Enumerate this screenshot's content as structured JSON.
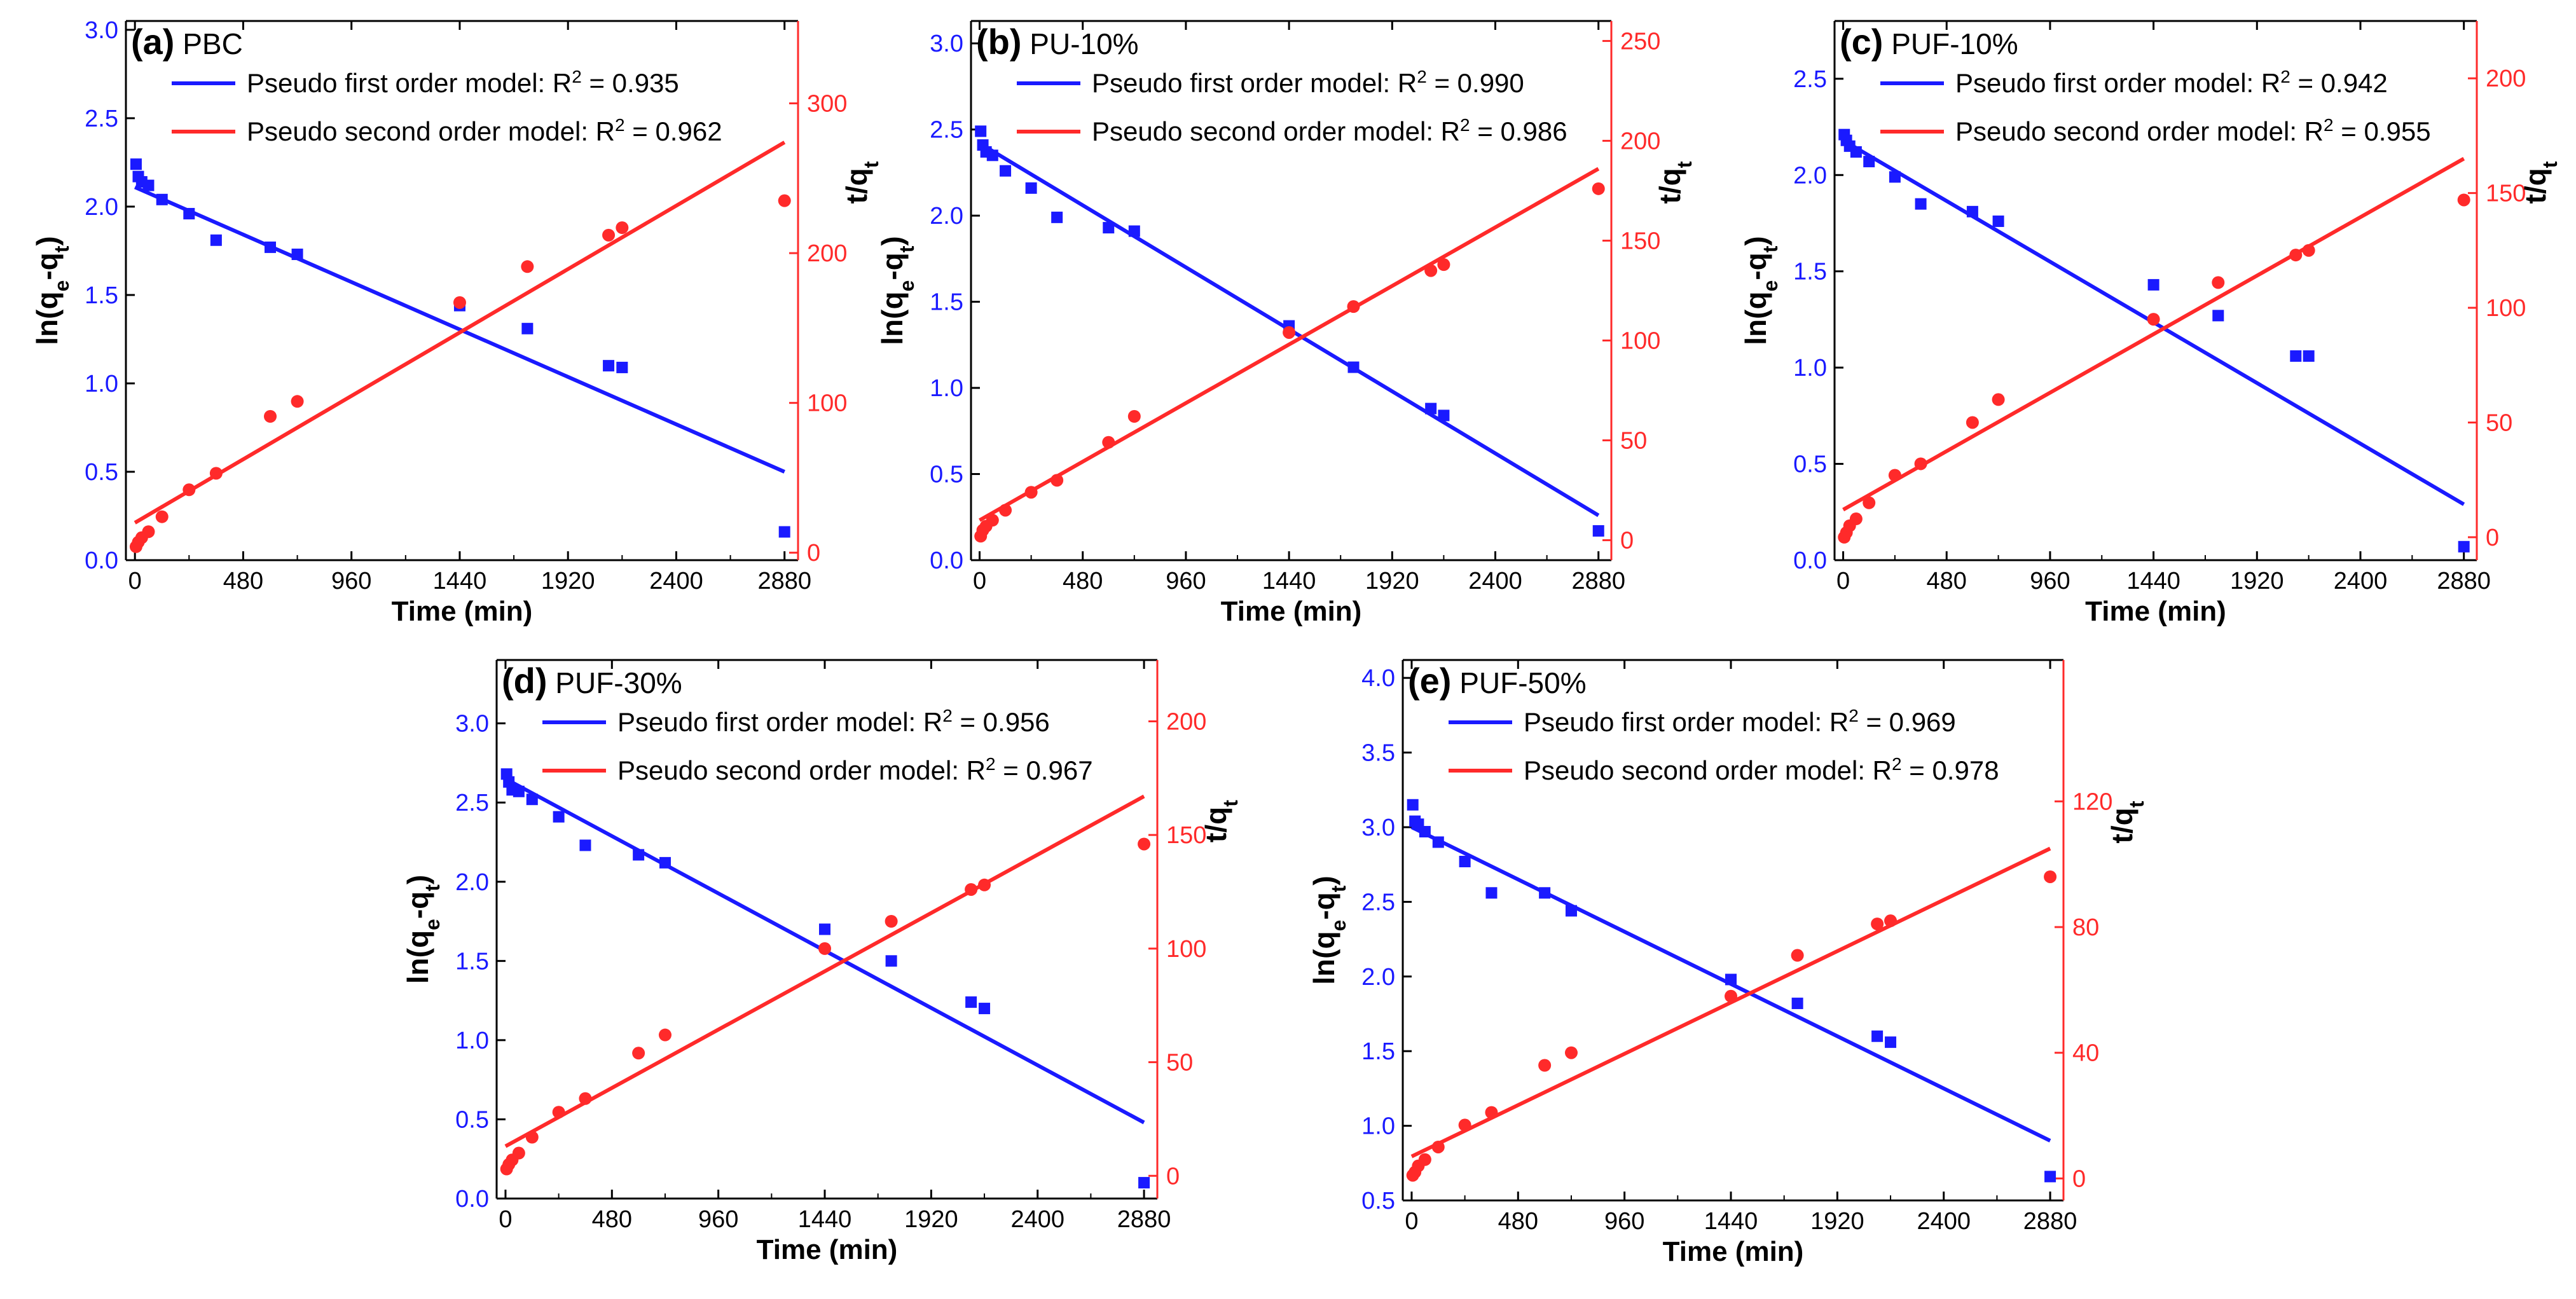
{
  "figure": {
    "colors": {
      "blue": "#1a1aff",
      "red": "#ff2a2a",
      "axis": "#000000"
    }
  },
  "chart_data": [
    {
      "type": "scatter",
      "panel_label": "(a)",
      "sample": "PBC",
      "xlabel": "Time (min)",
      "ylabel_left": [
        "ln(q",
        "e",
        "-q",
        "t",
        ")"
      ],
      "ylabel_right": [
        "t/q",
        "t"
      ],
      "xlim": [
        -40,
        2940
      ],
      "x_ticks": [
        0,
        480,
        960,
        1440,
        1920,
        2400,
        2880
      ],
      "ylim_left": [
        0.0,
        3.05
      ],
      "left_ticks": [
        "0.0",
        "0.5",
        "1.0",
        "1.5",
        "2.0",
        "2.5",
        "3.0"
      ],
      "ylim_right": [
        -5,
        355
      ],
      "right_ticks": [
        "0",
        "100",
        "200",
        "300"
      ],
      "legend": [
        {
          "text": "Pseudo first order model: R",
          "sup": "2",
          "tail": " = 0.935"
        },
        {
          "text": "Pseudo second order model: R",
          "sup": "2",
          "tail": " = 0.962"
        }
      ],
      "series": [
        {
          "name": "ln(qe-qt)",
          "axis": "left",
          "marker": "square",
          "color": "#1a1aff",
          "x": [
            5,
            15,
            30,
            60,
            120,
            240,
            360,
            600,
            720,
            1440,
            1740,
            2100,
            2160,
            2880
          ],
          "y": [
            2.24,
            2.17,
            2.14,
            2.12,
            2.04,
            1.96,
            1.81,
            1.77,
            1.73,
            1.44,
            1.31,
            1.1,
            1.09,
            0.16
          ]
        },
        {
          "name": "Pseudo first order fit",
          "axis": "left",
          "type": "line",
          "color": "#1a1aff",
          "x": [
            0,
            2880
          ],
          "y": [
            2.11,
            0.5
          ]
        },
        {
          "name": "t/qt",
          "axis": "right",
          "marker": "circle",
          "color": "#ff2a2a",
          "x": [
            5,
            15,
            30,
            60,
            120,
            240,
            360,
            600,
            720,
            1440,
            1740,
            2100,
            2160,
            2880
          ],
          "y": [
            4,
            7,
            10,
            14,
            24,
            42,
            53,
            91,
            101,
            167,
            191,
            212,
            217,
            235
          ]
        },
        {
          "name": "Pseudo second order fit",
          "axis": "right",
          "type": "line",
          "color": "#ff2a2a",
          "x": [
            0,
            2880
          ],
          "y": [
            20,
            274
          ]
        }
      ]
    },
    {
      "type": "scatter",
      "panel_label": "(b)",
      "sample": "PU-10%",
      "xlabel": "Time (min)",
      "ylabel_left": [
        "ln(q",
        "e",
        "-q",
        "t",
        ")"
      ],
      "ylabel_right": [
        "t/q",
        "t"
      ],
      "xlim": [
        -40,
        2940
      ],
      "x_ticks": [
        0,
        480,
        960,
        1440,
        1920,
        2400,
        2880
      ],
      "ylim_left": [
        0.0,
        3.13
      ],
      "left_ticks": [
        "0.0",
        "0.5",
        "1.0",
        "1.5",
        "2.0",
        "2.5",
        "3.0"
      ],
      "ylim_right": [
        -10,
        260
      ],
      "right_ticks": [
        "0",
        "50",
        "100",
        "150",
        "200",
        "250"
      ],
      "legend": [
        {
          "text": "Pseudo first order model: R",
          "sup": "2",
          "tail": " = 0.990"
        },
        {
          "text": "Pseudo second order model: R",
          "sup": "2",
          "tail": " = 0.986"
        }
      ],
      "series": [
        {
          "name": "ln(qe-qt)",
          "axis": "left",
          "marker": "square",
          "color": "#1a1aff",
          "x": [
            5,
            15,
            30,
            60,
            120,
            240,
            360,
            600,
            720,
            1440,
            1740,
            2100,
            2160,
            2880
          ],
          "y": [
            2.49,
            2.41,
            2.37,
            2.35,
            2.26,
            2.16,
            1.99,
            1.93,
            1.91,
            1.36,
            1.12,
            0.88,
            0.84,
            0.17
          ]
        },
        {
          "name": "Pseudo first order fit",
          "axis": "left",
          "type": "line",
          "color": "#1a1aff",
          "x": [
            0,
            2880
          ],
          "y": [
            2.42,
            0.26
          ]
        },
        {
          "name": "t/qt",
          "axis": "right",
          "marker": "circle",
          "color": "#ff2a2a",
          "x": [
            5,
            15,
            30,
            60,
            120,
            240,
            360,
            600,
            720,
            1440,
            1740,
            2100,
            2160,
            2880
          ],
          "y": [
            2,
            5,
            7,
            10,
            15,
            24,
            30,
            49,
            62,
            104,
            117,
            135,
            138,
            176
          ]
        },
        {
          "name": "Pseudo second order fit",
          "axis": "right",
          "type": "line",
          "color": "#ff2a2a",
          "x": [
            0,
            2880
          ],
          "y": [
            10,
            186
          ]
        }
      ]
    },
    {
      "type": "scatter",
      "panel_label": "(c)",
      "sample": "PUF-10%",
      "xlabel": "Time (min)",
      "ylabel_left": [
        "ln(q",
        "e",
        "-q",
        "t",
        ")"
      ],
      "ylabel_right": [
        "t/q",
        "t"
      ],
      "xlim": [
        -40,
        2940
      ],
      "x_ticks": [
        0,
        480,
        960,
        1440,
        1920,
        2400,
        2880
      ],
      "ylim_left": [
        0.0,
        2.8
      ],
      "left_ticks": [
        "0.0",
        "0.5",
        "1.0",
        "1.5",
        "2.0",
        "2.5"
      ],
      "ylim_right": [
        -10,
        225
      ],
      "right_ticks": [
        "0",
        "50",
        "100",
        "150",
        "200"
      ],
      "legend": [
        {
          "text": "Pseudo first order model: R",
          "sup": "2",
          "tail": " = 0.942"
        },
        {
          "text": "Pseudo second order model: R",
          "sup": "2",
          "tail": " = 0.955"
        }
      ],
      "series": [
        {
          "name": "ln(qe-qt)",
          "axis": "left",
          "marker": "square",
          "color": "#1a1aff",
          "x": [
            5,
            15,
            30,
            60,
            120,
            240,
            360,
            600,
            720,
            1440,
            1740,
            2100,
            2160,
            2880
          ],
          "y": [
            2.21,
            2.18,
            2.15,
            2.12,
            2.07,
            1.99,
            1.85,
            1.81,
            1.76,
            1.43,
            1.27,
            1.06,
            1.06,
            0.07
          ]
        },
        {
          "name": "Pseudo first order fit",
          "axis": "left",
          "type": "line",
          "color": "#1a1aff",
          "x": [
            0,
            2880
          ],
          "y": [
            2.18,
            0.29
          ]
        },
        {
          "name": "t/qt",
          "axis": "right",
          "marker": "circle",
          "color": "#ff2a2a",
          "x": [
            5,
            15,
            30,
            60,
            120,
            240,
            360,
            600,
            720,
            1440,
            1740,
            2100,
            2160,
            2880
          ],
          "y": [
            0,
            2,
            5,
            8,
            15,
            27,
            32,
            50,
            60,
            95,
            111,
            123,
            125,
            147
          ]
        },
        {
          "name": "Pseudo second order fit",
          "axis": "right",
          "type": "line",
          "color": "#ff2a2a",
          "x": [
            0,
            2880
          ],
          "y": [
            12,
            165
          ]
        }
      ]
    },
    {
      "type": "scatter",
      "panel_label": "(d)",
      "sample": "PUF-30%",
      "xlabel": "Time (min)",
      "ylabel_left": [
        "ln(q",
        "e",
        "-q",
        "t",
        ")"
      ],
      "ylabel_right": [
        "t/q",
        "t"
      ],
      "xlim": [
        -40,
        2940
      ],
      "x_ticks": [
        0,
        480,
        960,
        1440,
        1920,
        2400,
        2880
      ],
      "ylim_left": [
        0.0,
        3.4
      ],
      "left_ticks": [
        "0.0",
        "0.5",
        "1.0",
        "1.5",
        "2.0",
        "2.5",
        "3.0"
      ],
      "ylim_right": [
        -10,
        227
      ],
      "right_ticks": [
        "0",
        "50",
        "100",
        "150",
        "200"
      ],
      "legend": [
        {
          "text": "Pseudo first order model: R",
          "sup": "2",
          "tail": " = 0.956"
        },
        {
          "text": "Pseudo second order model: R",
          "sup": "2",
          "tail": " = 0.967"
        }
      ],
      "series": [
        {
          "name": "ln(qe-qt)",
          "axis": "left",
          "marker": "square",
          "color": "#1a1aff",
          "x": [
            5,
            15,
            30,
            60,
            120,
            240,
            360,
            600,
            720,
            1440,
            1740,
            2100,
            2160,
            2880
          ],
          "y": [
            2.68,
            2.63,
            2.58,
            2.57,
            2.52,
            2.41,
            2.23,
            2.17,
            2.12,
            1.7,
            1.5,
            1.24,
            1.2,
            0.1
          ]
        },
        {
          "name": "Pseudo first order fit",
          "axis": "left",
          "type": "line",
          "color": "#1a1aff",
          "x": [
            0,
            2880
          ],
          "y": [
            2.65,
            0.48
          ]
        },
        {
          "name": "t/qt",
          "axis": "right",
          "marker": "circle",
          "color": "#ff2a2a",
          "x": [
            5,
            15,
            30,
            60,
            120,
            240,
            360,
            600,
            720,
            1440,
            1740,
            2100,
            2160,
            2880
          ],
          "y": [
            3,
            5,
            7,
            10,
            17,
            28,
            34,
            54,
            62,
            100,
            112,
            126,
            128,
            146
          ]
        },
        {
          "name": "Pseudo second order fit",
          "axis": "right",
          "type": "line",
          "color": "#ff2a2a",
          "x": [
            0,
            2880
          ],
          "y": [
            13,
            167
          ]
        }
      ]
    },
    {
      "type": "scatter",
      "panel_label": "(e)",
      "sample": "PUF-50%",
      "xlabel": "Time (min)",
      "ylabel_left": [
        "ln(q",
        "e",
        "-q",
        "t",
        ")"
      ],
      "ylabel_right": [
        "t/q",
        "t"
      ],
      "xlim": [
        -40,
        2940
      ],
      "x_ticks": [
        0,
        480,
        960,
        1440,
        1920,
        2400,
        2880
      ],
      "ylim_left": [
        0.5,
        4.12
      ],
      "left_ticks": [
        "0.5",
        "1.0",
        "1.5",
        "2.0",
        "2.5",
        "3.0",
        "3.5",
        "4.0"
      ],
      "ylim_right": [
        -7,
        165
      ],
      "right_ticks": [
        "0",
        "40",
        "80",
        "120"
      ],
      "legend": [
        {
          "text": "Pseudo first order model: R",
          "sup": "2",
          "tail": " = 0.969"
        },
        {
          "text": "Pseudo second order model: R",
          "sup": "2",
          "tail": " = 0.978"
        }
      ],
      "series": [
        {
          "name": "ln(qe-qt)",
          "axis": "left",
          "marker": "square",
          "color": "#1a1aff",
          "x": [
            5,
            15,
            30,
            60,
            120,
            240,
            360,
            600,
            720,
            1440,
            1740,
            2100,
            2160,
            2880
          ],
          "y": [
            3.15,
            3.04,
            3.02,
            2.97,
            2.9,
            2.77,
            2.56,
            2.56,
            2.44,
            1.98,
            1.82,
            1.6,
            1.56,
            0.66
          ]
        },
        {
          "name": "Pseudo first order fit",
          "axis": "left",
          "type": "line",
          "color": "#1a1aff",
          "x": [
            0,
            2880
          ],
          "y": [
            3.0,
            0.9
          ]
        },
        {
          "name": "t/qt",
          "axis": "right",
          "marker": "circle",
          "color": "#ff2a2a",
          "x": [
            5,
            15,
            30,
            60,
            120,
            240,
            360,
            600,
            720,
            1440,
            1740,
            2100,
            2160,
            2880
          ],
          "y": [
            1,
            2,
            4,
            6,
            10,
            17,
            21,
            36,
            40,
            58,
            71,
            81,
            82,
            96
          ]
        },
        {
          "name": "Pseudo second order fit",
          "axis": "right",
          "type": "line",
          "color": "#ff2a2a",
          "x": [
            0,
            2880
          ],
          "y": [
            7,
            105
          ]
        }
      ]
    }
  ]
}
